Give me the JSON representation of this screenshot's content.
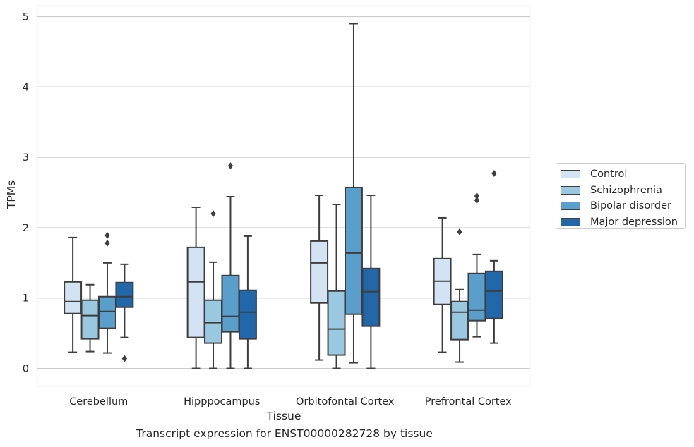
{
  "caption": "Transcript expression for ENST00000282728 by tissue",
  "chart_data": {
    "type": "boxplot",
    "title": "",
    "xlabel": "Tissue",
    "ylabel": "TPMs",
    "ylim": [
      -0.25,
      5.15
    ],
    "yticks": [
      0,
      1,
      2,
      3,
      4,
      5
    ],
    "grid": true,
    "legend_position": "right",
    "categories": [
      "Cerebellum",
      "Hipppocampus",
      "Orbitofontal Cortex",
      "Prefrontal Cortex"
    ],
    "series": [
      {
        "name": "Control",
        "color": "#d3e3f3",
        "boxes": [
          {
            "whislo": 0.23,
            "q1": 0.78,
            "med": 0.95,
            "q3": 1.23,
            "whishi": 1.86,
            "fliers": []
          },
          {
            "whislo": 0.0,
            "q1": 0.44,
            "med": 1.23,
            "q3": 1.72,
            "whishi": 2.29,
            "fliers": []
          },
          {
            "whislo": 0.12,
            "q1": 0.93,
            "med": 1.5,
            "q3": 1.81,
            "whishi": 2.46,
            "fliers": []
          },
          {
            "whislo": 0.23,
            "q1": 0.91,
            "med": 1.24,
            "q3": 1.56,
            "whishi": 2.14,
            "fliers": []
          }
        ]
      },
      {
        "name": "Schizophrenia",
        "color": "#9ac8e0",
        "boxes": [
          {
            "whislo": 0.24,
            "q1": 0.42,
            "med": 0.75,
            "q3": 0.97,
            "whishi": 1.19,
            "fliers": []
          },
          {
            "whislo": 0.0,
            "q1": 0.36,
            "med": 0.65,
            "q3": 0.97,
            "whishi": 1.51,
            "fliers": [
              2.2
            ]
          },
          {
            "whislo": 0.0,
            "q1": 0.19,
            "med": 0.56,
            "q3": 1.1,
            "whishi": 2.33,
            "fliers": []
          },
          {
            "whislo": 0.09,
            "q1": 0.41,
            "med": 0.8,
            "q3": 0.95,
            "whishi": 1.12,
            "fliers": [
              1.94
            ]
          }
        ]
      },
      {
        "name": "Bipolar disorder",
        "color": "#5a9fcc",
        "boxes": [
          {
            "whislo": 0.22,
            "q1": 0.57,
            "med": 0.81,
            "q3": 1.02,
            "whishi": 1.5,
            "fliers": [
              1.78,
              1.89
            ]
          },
          {
            "whislo": 0.0,
            "q1": 0.52,
            "med": 0.74,
            "q3": 1.32,
            "whishi": 2.44,
            "fliers": [
              2.88
            ]
          },
          {
            "whislo": 0.08,
            "q1": 0.77,
            "med": 1.64,
            "q3": 2.57,
            "whishi": 4.9,
            "fliers": []
          },
          {
            "whislo": 0.45,
            "q1": 0.68,
            "med": 0.83,
            "q3": 1.35,
            "whishi": 1.62,
            "fliers": [
              2.39,
              2.45
            ]
          }
        ]
      },
      {
        "name": "Major depression",
        "color": "#2367ab",
        "boxes": [
          {
            "whislo": 0.44,
            "q1": 0.87,
            "med": 1.02,
            "q3": 1.22,
            "whishi": 1.48,
            "fliers": [
              0.14
            ]
          },
          {
            "whislo": 0.0,
            "q1": 0.42,
            "med": 0.8,
            "q3": 1.11,
            "whishi": 1.88,
            "fliers": []
          },
          {
            "whislo": 0.0,
            "q1": 0.6,
            "med": 1.09,
            "q3": 1.42,
            "whishi": 2.46,
            "fliers": []
          },
          {
            "whislo": 0.36,
            "q1": 0.71,
            "med": 1.1,
            "q3": 1.38,
            "whishi": 1.53,
            "fliers": [
              2.77
            ]
          }
        ]
      }
    ]
  }
}
